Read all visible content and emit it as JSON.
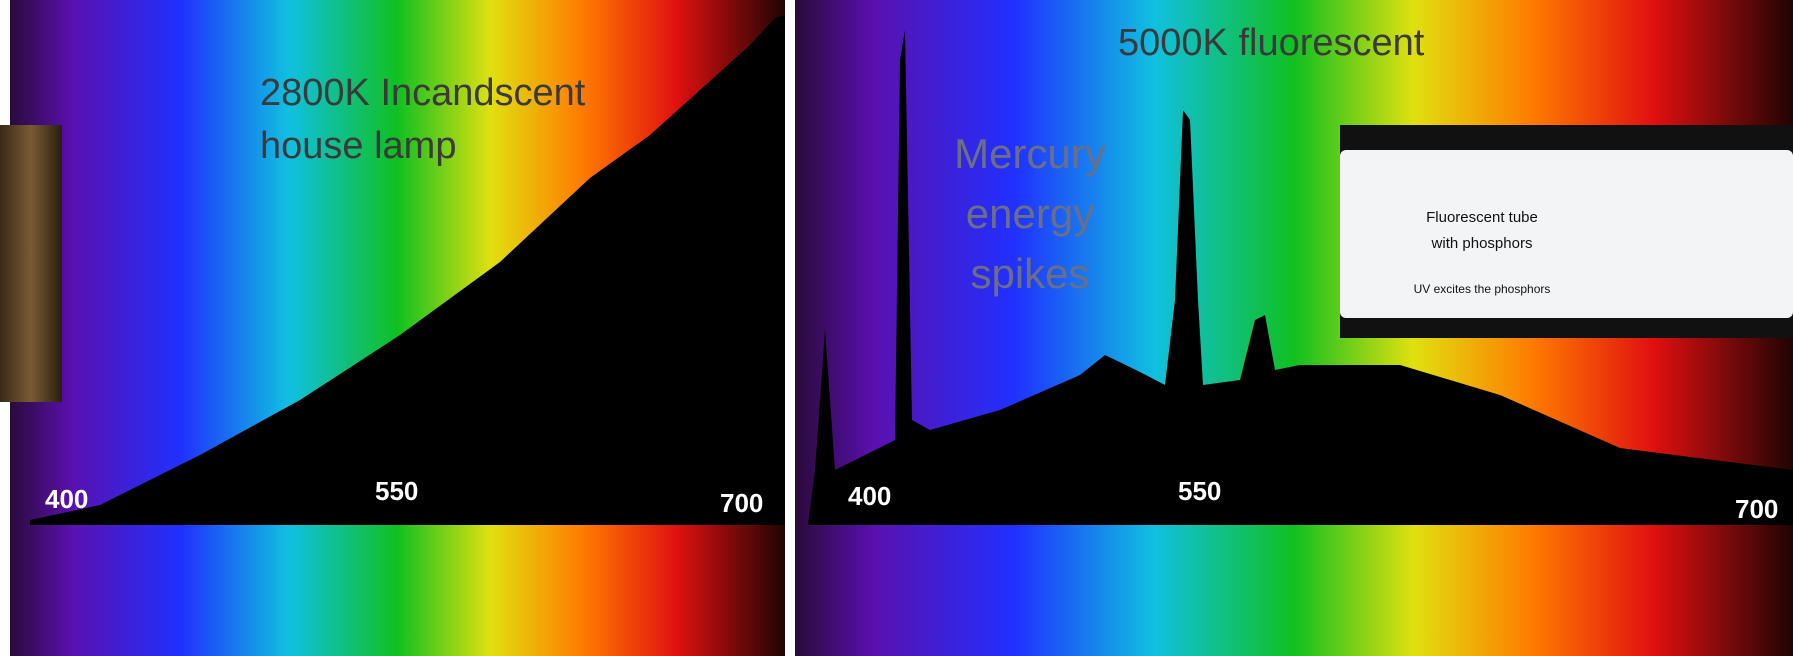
{
  "left_panel": {
    "title_lines": [
      "2800K Incandscent",
      "house lamp"
    ],
    "axis_labels": [
      "400",
      "550",
      "700"
    ]
  },
  "right_panel": {
    "title": "5000K fluorescent",
    "annotation_lines": [
      "Mercury",
      "energy",
      "spikes"
    ],
    "axis_labels": [
      "400",
      "550",
      "700"
    ],
    "inset": {
      "lines": [
        "Fluorescent tube",
        "with phosphors"
      ],
      "note": "UV excites the phosphors"
    }
  }
}
